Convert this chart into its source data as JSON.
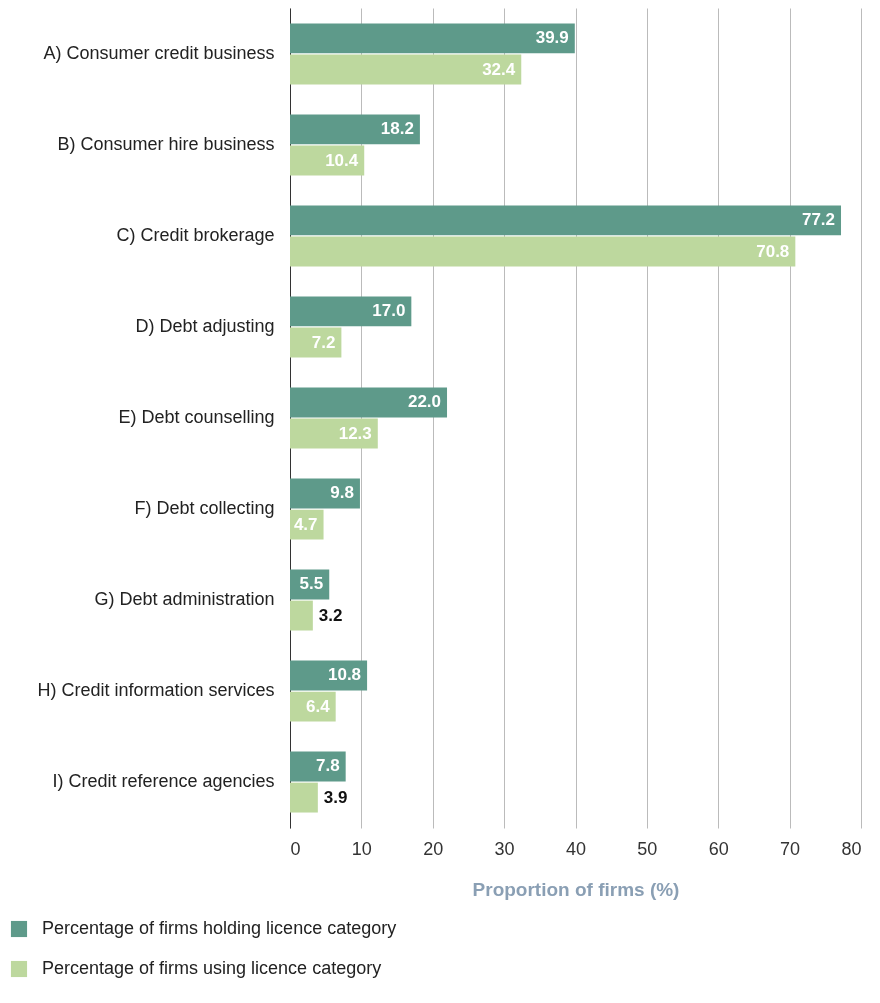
{
  "chart_data": {
    "type": "bar",
    "orientation": "horizontal",
    "xlabel": "Proportion of firms (%)",
    "categories": [
      "A) Consumer credit business",
      "B) Consumer hire business",
      "C) Credit brokerage",
      "D) Debt adjusting",
      "E) Debt counselling",
      "F) Debt collecting",
      "G) Debt administration",
      "H) Credit information services",
      "I) Credit reference agencies"
    ],
    "series": [
      {
        "name": "Percentage of firms holding licence category",
        "color": "#5e9a8a",
        "values": [
          39.9,
          18.2,
          77.2,
          17.0,
          22.0,
          9.8,
          5.5,
          10.8,
          7.8
        ],
        "value_labels": [
          "39.9",
          "18.2",
          "77.2",
          "17.0",
          "22.0",
          "9.8",
          "5.5",
          "10.8",
          "7.8"
        ]
      },
      {
        "name": "Percentage of firms using licence category",
        "color": "#bdd89e",
        "values": [
          32.4,
          10.4,
          70.8,
          7.2,
          12.3,
          4.7,
          3.2,
          6.4,
          3.9
        ],
        "value_labels": [
          "32.4",
          "10.4",
          "70.8",
          "7.2",
          "12.3",
          "4.7",
          "3.2",
          "6.4",
          "3.9"
        ]
      }
    ],
    "xlim": [
      0,
      80
    ],
    "xticks": [
      0,
      10,
      20,
      30,
      40,
      50,
      60,
      70,
      80
    ],
    "grid": "x",
    "legend": "bottom"
  }
}
